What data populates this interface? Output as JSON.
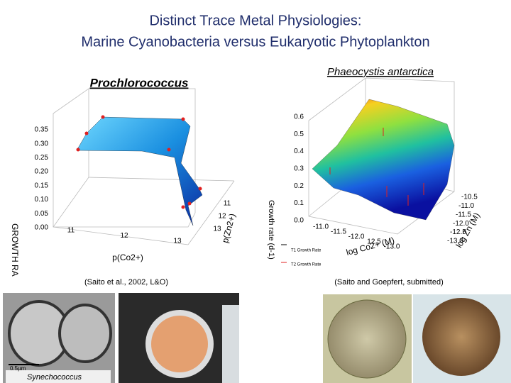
{
  "header": {
    "title_lines": [
      "Distinct Trace Metal Physiologies:",
      "Marine Cyanobacteria  versus Eukaryotic Phytoplankton"
    ]
  },
  "left_plot": {
    "title": "Prochlorococcus",
    "z_ticks": [
      "0.35",
      "0.30",
      "0.25",
      "0.20",
      "0.15",
      "0.10",
      "0.05",
      "0.00"
    ],
    "x_ticks": [
      "11",
      "12",
      "13"
    ],
    "x_label": "p(Co2+)",
    "y_ticks": [
      "11",
      "12",
      "13"
    ],
    "y_label": "p(Zn2+)",
    "z_label": "GROWTH RA",
    "citation": "(Saito et al., 2002, L&O)"
  },
  "right_plot": {
    "title": "Phaeocystis antarctica",
    "z_ticks": [
      "0.6",
      "0.5",
      "0.4",
      "0.3",
      "0.2",
      "0.1",
      "0.0"
    ],
    "z_label": "Growth rate (d-1)",
    "x_ticks": [
      "-11.0",
      "-11.5",
      "-12.0",
      "12.5",
      "-13.0"
    ],
    "x_label": "log Co2+ (M)",
    "y_ticks": [
      "-10.5",
      "-11.0",
      "-11.5",
      "-12.0",
      "-12.5",
      "-13.0"
    ],
    "y_label": "log Zn (M)",
    "legend": [
      "T1 Growth Rate",
      "T2 Growth Rate"
    ],
    "citation": "(Saito and Goepfert, submitted)"
  },
  "photos": {
    "scale_bar": "0.5µm",
    "caption": "Synechococcus"
  }
}
